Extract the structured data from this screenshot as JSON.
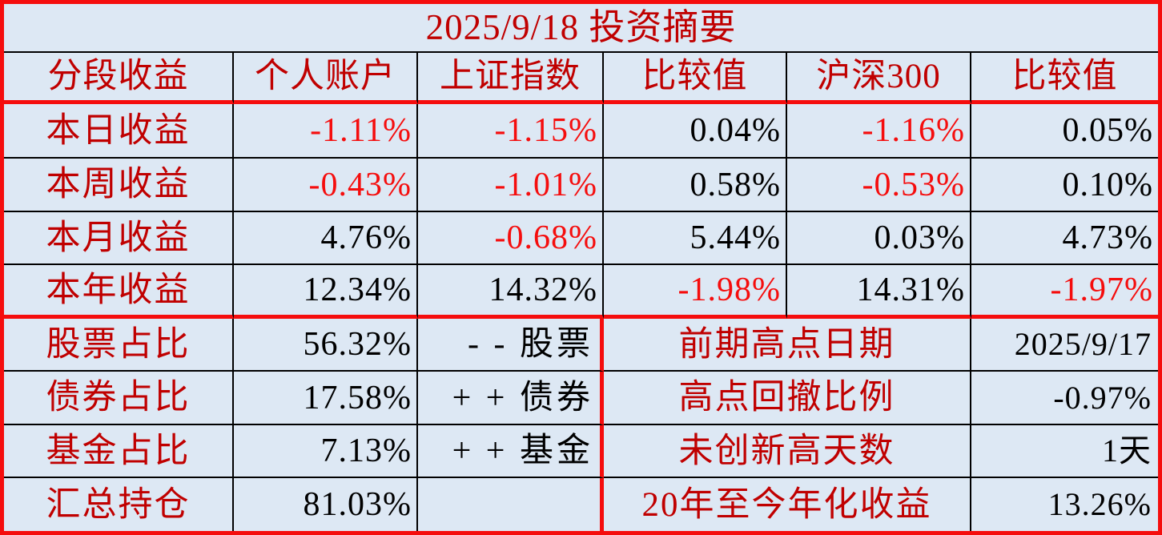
{
  "title": "2025/9/18 投资摘要",
  "colors": {
    "background": "#dde8f4",
    "label_red": "#c00000",
    "negative_red": "#f50d0d",
    "positive_black": "#000000",
    "grid_thick": "#f50d0d",
    "grid_thin": "#000000"
  },
  "table": {
    "headers": [
      "分段收益",
      "个人账户",
      "上证指数",
      "比较值",
      "沪深300",
      "比较值"
    ],
    "performance_rows": [
      {
        "label": "本日收益",
        "values": [
          "-1.11%",
          "-1.15%",
          "0.04%",
          "-1.16%",
          "0.05%"
        ]
      },
      {
        "label": "本周收益",
        "values": [
          "-0.43%",
          "-1.01%",
          "0.58%",
          "-0.53%",
          "0.10%"
        ]
      },
      {
        "label": "本月收益",
        "values": [
          "4.76%",
          "-0.68%",
          "5.44%",
          "0.03%",
          "4.73%"
        ]
      },
      {
        "label": "本年收益",
        "values": [
          "12.34%",
          "14.32%",
          "-1.98%",
          "14.31%",
          "-1.97%"
        ]
      }
    ],
    "holdings_rows": [
      {
        "label": "股票占比",
        "value": "56.32%",
        "note": "- - 股票",
        "metric_label": "前期高点日期",
        "metric_value": "2025/9/17"
      },
      {
        "label": "债券占比",
        "value": "17.58%",
        "note": "+ + 债券",
        "metric_label": "高点回撤比例",
        "metric_value": "-0.97%"
      },
      {
        "label": "基金占比",
        "value": "7.13%",
        "note": "+ + 基金",
        "metric_label": "未创新高天数",
        "metric_value": "1天"
      },
      {
        "label": "汇总持仓",
        "value": "81.03%",
        "note": "",
        "metric_label": "20年至今年化收益",
        "metric_value": "13.26%"
      }
    ]
  }
}
